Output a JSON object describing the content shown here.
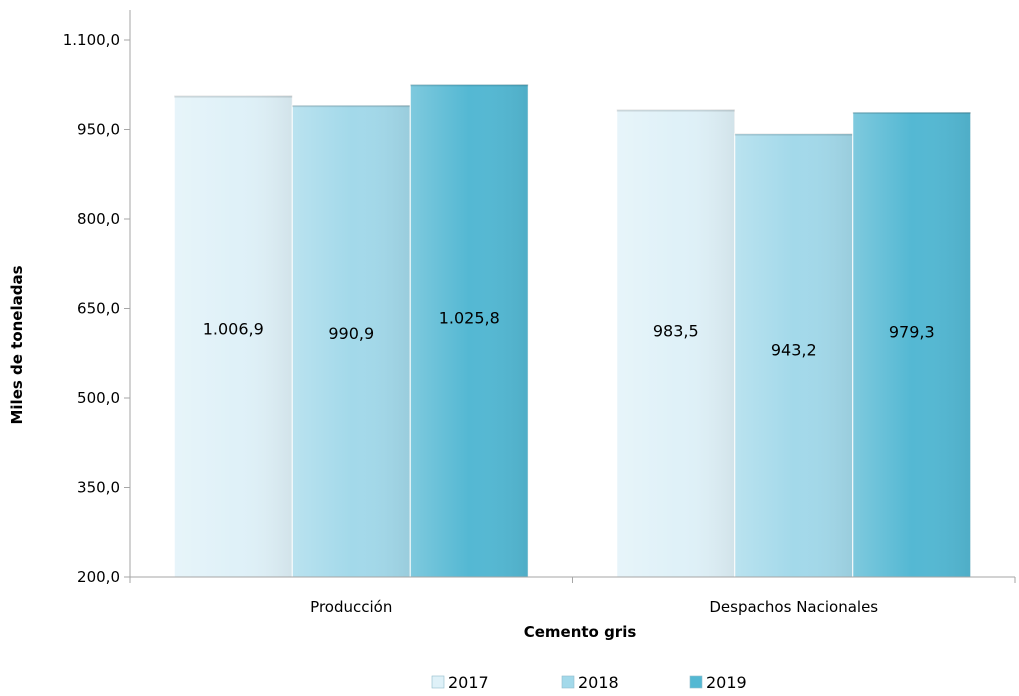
{
  "chart_data": {
    "type": "bar",
    "title": "",
    "xlabel": "Cemento gris",
    "ylabel": "Miles de toneladas",
    "ylim": [
      200,
      1100
    ],
    "yticks": [
      200,
      350,
      500,
      650,
      800,
      950,
      1100
    ],
    "ytick_labels": [
      "200,0",
      "350,0",
      "500,0",
      "650,0",
      "800,0",
      "950,0",
      "1.100,0"
    ],
    "categories": [
      "Producción",
      "Despachos Nacionales"
    ],
    "series": [
      {
        "name": "2017",
        "color": "#dff1f8",
        "values": [
          1006.9,
          983.5
        ],
        "labels": [
          "1.006,9",
          "983,5"
        ]
      },
      {
        "name": "2018",
        "color": "#a3d9ea",
        "values": [
          990.9,
          943.2
        ],
        "labels": [
          "990,9",
          "943,2"
        ]
      },
      {
        "name": "2019",
        "color": "#54b8d3",
        "values": [
          1025.8,
          979.3
        ],
        "labels": [
          "1.025,8",
          "979,3"
        ]
      }
    ],
    "legend_position": "bottom",
    "grid": false
  }
}
